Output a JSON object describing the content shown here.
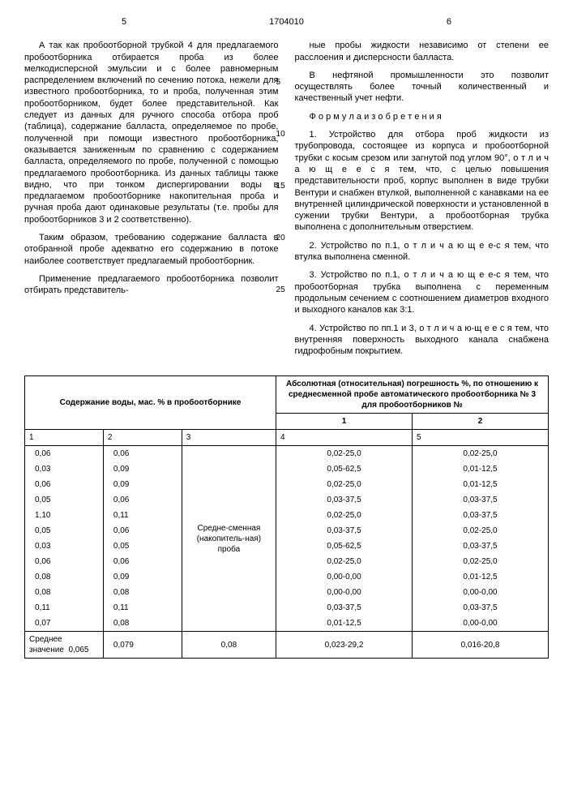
{
  "header": {
    "page_left": "5",
    "doc_number": "1704010",
    "page_right": "6"
  },
  "line_markers": [
    "5",
    "10",
    "15",
    "20",
    "25"
  ],
  "left_col": {
    "p1": "А так как пробоотборной трубкой 4 для предлагаемого пробоотборника отбирается проба из более мелкодисперсной эмульсии и с более равномерным распределением включений по сечению потока, нежели для известного пробоотборника, то и проба, полученная этим пробоотборником, будет более представительной. Как следует из данных для ручного способа отбора проб (таблица), содержание балласта, определяемое по пробе, полученной при помощи известного пробоотборника, оказывается заниженным по сравнению с содержанием балласта, определяемого по пробе, полученной с помощью предлагаемого пробоотборника. Из данных таблицы также видно, что при тонком диспергировании воды в предлагаемом пробоотборнике накопительная проба и ручная проба дают одинаковые результаты (т.е. пробы для пробоотборников 3 и 2 соответственно).",
    "p2": "Таким образом, требованию содержание балласта в отобранной пробе адекватно его содержанию в потоке наиболее соответствует предлагаемый пробоотборник.",
    "p3": "Применение предлагаемого пробоотборника позволит отбирать представитель-"
  },
  "right_col": {
    "p1": "ные пробы жидкости независимо от степени ее расслоения и дисперсности балласта.",
    "p2": "В нефтяной промышленности это позволит осуществлять более точный количественный и качественный учет нефти.",
    "formula_title": "Ф о р м у л а  и з о б р е т е н и я",
    "claim1": "1. Устройство для отбора проб жидкости из трубопровода, состоящее из корпуса и пробоотборной трубки с косым срезом или загнутой под углом 90°, о т л и ч а ю щ е е с я  тем, что, с целью повышения представительности проб, корпус выполнен в виде трубки Вентури и снабжен втулкой, выполненной с канавками на ее внутренней цилиндрической поверхности и установленной в сужении трубки Вентури, а пробоотборная трубка выполнена с дополнительным отверстием.",
    "claim2": "2. Устройство по п.1, о т л и ч а ю щ е е-с я  тем, что втулка выполнена сменной.",
    "claim3": "3. Устройство по п.1, о т л и ч а ю щ е е-с я  тем, что пробоотборная трубка выполнена с переменным продольным сечением с соотношением диаметров входного и выходного каналов как 3:1.",
    "claim4": "4. Устройство по пп.1 и 3, о т л и ч а ю-щ е е с я  тем, что внутренняя поверхность выходного канала снабжена гидрофобным покрытием."
  },
  "table": {
    "header_left": "Содержание воды, мас. % в пробоотборнике",
    "header_right": "Абсолютная (относительная) погрешность %, по отношению к среднесменной пробе автоматического пробоотборника № 3 для пробоотборников №",
    "sub_right_1": "1",
    "sub_right_2": "2",
    "col_nums": [
      "1",
      "2",
      "3",
      "4",
      "5"
    ],
    "col3_label": "Средне-сменная (накопитель-ная) проба",
    "rows": [
      {
        "c1": "0,06",
        "c2": "0,06",
        "c4": "0,02-25,0",
        "c5": "0,02-25,0"
      },
      {
        "c1": "0,03",
        "c2": "0,09",
        "c4": "0,05-62,5",
        "c5": "0,01-12,5"
      },
      {
        "c1": "0,06",
        "c2": "0,09",
        "c4": "0,02-25,0",
        "c5": "0,01-12,5"
      },
      {
        "c1": "0,05",
        "c2": "0,06",
        "c4": "0,03-37,5",
        "c5": "0,03-37,5"
      },
      {
        "c1": "1,10",
        "c2": "0,11",
        "c4": "0,02-25,0",
        "c5": "0,03-37,5"
      },
      {
        "c1": "0,05",
        "c2": "0,06",
        "c4": "0,03-37,5",
        "c5": "0,02-25,0"
      },
      {
        "c1": "0,03",
        "c2": "0,05",
        "c4": "0,05-62,5",
        "c5": "0,03-37,5"
      },
      {
        "c1": "0,06",
        "c2": "0,06",
        "c4": "0,02-25,0",
        "c5": "0,02-25,0"
      },
      {
        "c1": "0,08",
        "c2": "0,09",
        "c4": "0,00-0,00",
        "c5": "0,01-12,5"
      },
      {
        "c1": "0,08",
        "c2": "0,08",
        "c4": "0,00-0,00",
        "c5": "0,00-0,00"
      },
      {
        "c1": "0,11",
        "c2": "0,11",
        "c4": "0,03-37,5",
        "c5": "0,03-37,5"
      },
      {
        "c1": "0,07",
        "c2": "0,08",
        "c4": "0,01-12,5",
        "c5": "0,00-0,00"
      }
    ],
    "footer": {
      "label": "Среднее значение",
      "c1": "0,065",
      "c2": "0,079",
      "c3": "0,08",
      "c4": "0,023-29,2",
      "c5": "0,016-20,8"
    }
  }
}
